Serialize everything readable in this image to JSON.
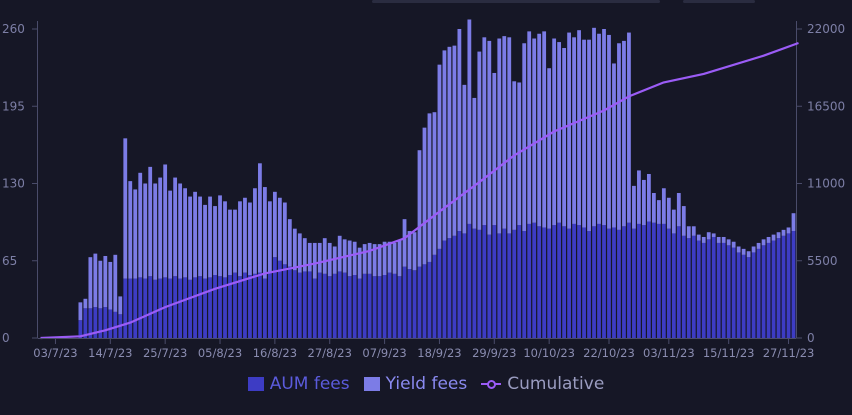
{
  "chart_data": {
    "type": "bar",
    "stacked": true,
    "y_left": {
      "ylim": [
        0,
        260
      ],
      "ticks": [
        "0",
        "65",
        "130",
        "195",
        "260"
      ]
    },
    "y_right": {
      "ylim": [
        0,
        22000
      ],
      "ticks": [
        "0",
        "5500",
        "11000",
        "16500",
        "22000"
      ]
    },
    "x_tick_labels": [
      "03/7/23",
      "14/7/23",
      "25/7/23",
      "05/8/23",
      "16/8/23",
      "27/8/23",
      "07/9/23",
      "18/9/23",
      "29/9/23",
      "10/10/23",
      "22/10/23",
      "03/11/23",
      "15/11/23",
      "27/11/23"
    ],
    "x_tick_days": [
      3,
      14,
      25,
      36,
      47,
      58,
      69,
      80,
      91,
      102,
      114,
      126,
      138,
      150
    ],
    "start_date": "2023-06-30",
    "day_count": 152,
    "grid": false,
    "legend_position": "bottom",
    "series": [
      {
        "name": "AUM fees",
        "color": "#3d3cc4",
        "values": [
          0,
          0,
          0,
          0,
          0,
          0,
          0,
          0,
          15,
          25,
          25,
          26,
          25,
          26,
          24,
          22,
          20,
          50,
          50,
          50,
          51,
          50,
          52,
          49,
          50,
          51,
          50,
          52,
          50,
          51,
          49,
          51,
          52,
          50,
          51,
          53,
          52,
          51,
          53,
          55,
          52,
          55,
          53,
          54,
          55,
          50,
          55,
          68,
          65,
          62,
          60,
          57,
          55,
          56,
          56,
          50,
          55,
          54,
          52,
          54,
          56,
          55,
          52,
          53,
          50,
          54,
          54,
          52,
          52,
          53,
          55,
          54,
          52,
          60,
          58,
          57,
          60,
          62,
          64,
          70,
          75,
          82,
          84,
          86,
          90,
          88,
          96,
          92,
          91,
          95,
          87,
          95,
          88,
          92,
          88,
          91,
          95,
          90,
          96,
          97,
          94,
          93,
          92,
          95,
          97,
          94,
          92,
          96,
          95,
          93,
          90,
          94,
          96,
          95,
          92,
          93,
          91,
          94,
          97,
          92,
          96,
          95,
          98,
          97,
          96,
          96,
          92,
          88,
          94,
          86,
          84,
          86,
          82,
          80,
          83,
          85,
          80,
          80,
          78,
          76,
          72,
          70,
          68,
          72,
          75,
          78,
          80,
          82,
          84,
          86,
          88,
          90,
          98
        ]
      },
      {
        "name": "Yield fees",
        "color": "#7c7ce6",
        "values": [
          0,
          0,
          0,
          0,
          0,
          0,
          0,
          0,
          15,
          8,
          43,
          45,
          40,
          43,
          40,
          48,
          15,
          118,
          82,
          75,
          88,
          80,
          92,
          81,
          85,
          95,
          74,
          83,
          80,
          75,
          70,
          72,
          67,
          62,
          68,
          58,
          68,
          64,
          55,
          53,
          63,
          63,
          61,
          72,
          92,
          77,
          60,
          55,
          53,
          52,
          40,
          35,
          33,
          28,
          24,
          30,
          25,
          30,
          28,
          23,
          30,
          28,
          30,
          28,
          26,
          25,
          26,
          27,
          27,
          28,
          26,
          26,
          30,
          40,
          32,
          32,
          98,
          115,
          125,
          120,
          155,
          160,
          161,
          160,
          170,
          125,
          172,
          110,
          150,
          158,
          163,
          128,
          164,
          162,
          165,
          125,
          120,
          158,
          162,
          155,
          162,
          165,
          135,
          157,
          152,
          150,
          165,
          157,
          164,
          158,
          161,
          167,
          160,
          165,
          163,
          138,
          157,
          156,
          160,
          36,
          45,
          38,
          40,
          25,
          20,
          30,
          26,
          20,
          28,
          25,
          10,
          8,
          5,
          5,
          6,
          3,
          5,
          5,
          5,
          5,
          5,
          5,
          5,
          5,
          5,
          5,
          5,
          5,
          5,
          5,
          5,
          15
        ]
      },
      {
        "name": "Cumulative",
        "color": "#9b5cf6",
        "type": "line",
        "axis": "right",
        "x_days": [
          0,
          8,
          13,
          18,
          25,
          35,
          45,
          55,
          66,
          73,
          80,
          88,
          95,
          103,
          113,
          118,
          125,
          133,
          145,
          152
        ],
        "values": [
          0,
          120,
          550,
          1100,
          2200,
          3500,
          4600,
          5300,
          6200,
          7100,
          9000,
          11100,
          13000,
          14700,
          16200,
          17200,
          18200,
          18800,
          20100,
          21000
        ]
      }
    ]
  },
  "legend": {
    "aum_label": "AUM fees",
    "yield_label": "Yield fees",
    "cumulative_label": "Cumulative"
  }
}
